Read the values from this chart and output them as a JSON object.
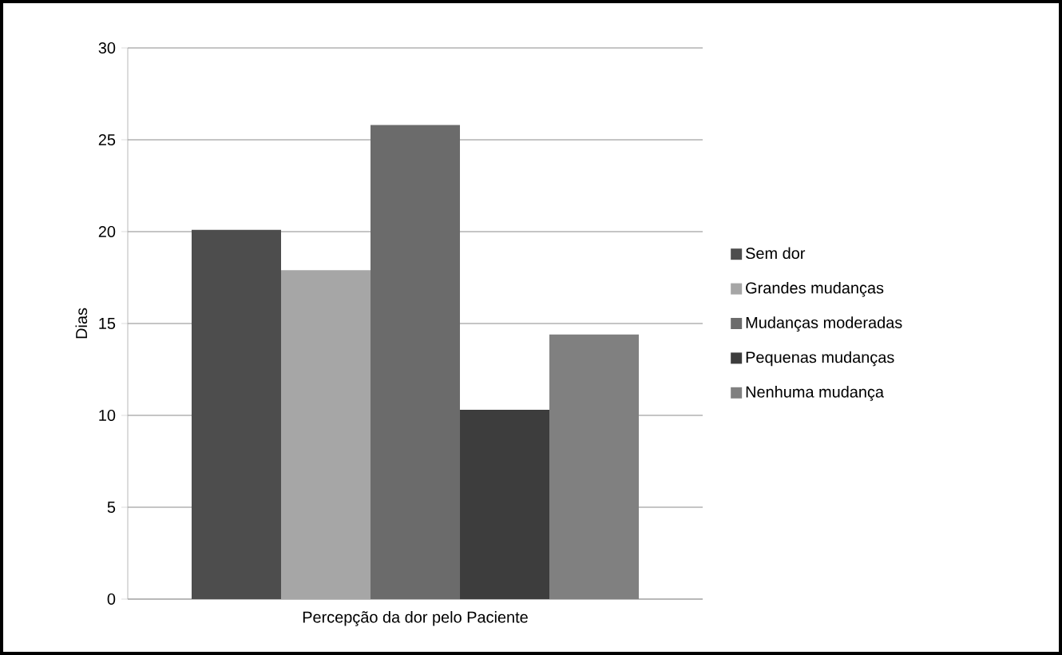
{
  "chart_data": {
    "type": "bar",
    "ylabel": "Dias",
    "categories": [
      "Percepção da dor pelo Paciente"
    ],
    "series": [
      {
        "name": "Sem dor",
        "color": "#4d4d4d",
        "values": [
          20.1
        ]
      },
      {
        "name": "Grandes mudanças",
        "color": "#a6a6a6",
        "values": [
          17.9
        ]
      },
      {
        "name": "Mudanças moderadas",
        "color": "#6b6b6b",
        "values": [
          25.8
        ]
      },
      {
        "name": "Pequenas mudanças",
        "color": "#3d3d3d",
        "values": [
          10.3
        ]
      },
      {
        "name": "Nenhuma mudança",
        "color": "#808080",
        "values": [
          14.4
        ]
      }
    ],
    "ylim": [
      0,
      30
    ],
    "yticks": [
      0,
      5,
      10,
      15,
      20,
      25,
      30
    ],
    "grid": "y",
    "legend": "right"
  }
}
